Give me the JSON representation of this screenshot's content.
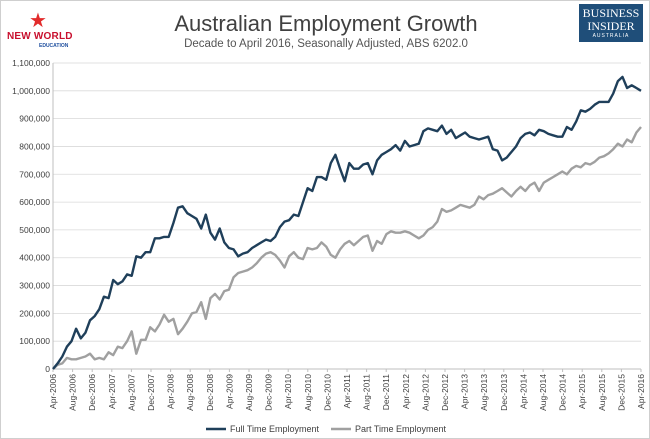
{
  "header": {
    "title": "Australian Employment Growth",
    "subtitle": "Decade to April 2016, Seasonally Adjusted, ABS 6202.0",
    "left_logo": {
      "text": "NEW WORLD",
      "sub": "EDUCATION",
      "icon": "star-person-icon",
      "color": "#c8102e"
    },
    "right_logo": {
      "line1": "BUSINESS",
      "line2": "INSIDER",
      "line3": "AUSTRALIA",
      "bg": "#1f4e79"
    }
  },
  "chart_data": {
    "type": "line",
    "title": "Australian Employment Growth",
    "subtitle": "Decade to April 2016, Seasonally Adjusted, ABS 6202.0",
    "xlabel": "",
    "ylabel": "",
    "ylim": [
      0,
      1100000
    ],
    "yticks": [
      "0",
      "100,000",
      "200,000",
      "300,000",
      "400,000",
      "500,000",
      "600,000",
      "700,000",
      "800,000",
      "900,000",
      "1,000,000",
      "1,100,000"
    ],
    "x_tick_labels": [
      "Apr-2006",
      "Aug-2006",
      "Dec-2006",
      "Apr-2007",
      "Aug-2007",
      "Dec-2007",
      "Apr-2008",
      "Aug-2008",
      "Dec-2008",
      "Apr-2009",
      "Aug-2009",
      "Dec-2009",
      "Apr-2010",
      "Aug-2010",
      "Dec-2010",
      "Apr-2011",
      "Aug-2011",
      "Dec-2011",
      "Apr-2012",
      "Aug-2012",
      "Dec-2012",
      "Apr-2013",
      "Aug-2013",
      "Dec-2013",
      "Apr-2014",
      "Aug-2014",
      "Dec-2014",
      "Apr-2015",
      "Aug-2015",
      "Dec-2015",
      "Apr-2016"
    ],
    "grid": true,
    "legend_position": "bottom",
    "series": [
      {
        "name": "Full Time Employment",
        "color": "#1f3f5a",
        "values": [
          0,
          20000,
          45000,
          80000,
          100000,
          145000,
          110000,
          130000,
          175000,
          190000,
          215000,
          260000,
          255000,
          320000,
          305000,
          315000,
          340000,
          335000,
          405000,
          400000,
          420000,
          420000,
          470000,
          470000,
          475000,
          475000,
          525000,
          580000,
          585000,
          560000,
          550000,
          540000,
          505000,
          555000,
          490000,
          465000,
          505000,
          455000,
          435000,
          430000,
          405000,
          415000,
          420000,
          435000,
          445000,
          455000,
          465000,
          460000,
          475000,
          510000,
          530000,
          535000,
          555000,
          550000,
          600000,
          650000,
          640000,
          690000,
          690000,
          680000,
          740000,
          770000,
          720000,
          675000,
          740000,
          720000,
          720000,
          735000,
          740000,
          700000,
          750000,
          770000,
          780000,
          790000,
          805000,
          785000,
          820000,
          800000,
          805000,
          810000,
          855000,
          865000,
          860000,
          855000,
          875000,
          845000,
          860000,
          830000,
          840000,
          850000,
          835000,
          830000,
          825000,
          830000,
          835000,
          790000,
          785000,
          750000,
          760000,
          780000,
          800000,
          830000,
          845000,
          850000,
          840000,
          860000,
          855000,
          845000,
          840000,
          835000,
          835000,
          870000,
          860000,
          890000,
          930000,
          925000,
          935000,
          950000,
          960000,
          960000,
          960000,
          990000,
          1035000,
          1050000,
          1010000,
          1020000,
          1010000,
          1000000
        ]
      },
      {
        "name": "Part Time Employment",
        "color": "#a0a0a0",
        "values": [
          0,
          15000,
          20000,
          40000,
          35000,
          35000,
          40000,
          45000,
          55000,
          35000,
          40000,
          35000,
          60000,
          50000,
          80000,
          75000,
          100000,
          135000,
          55000,
          105000,
          105000,
          150000,
          135000,
          160000,
          195000,
          170000,
          180000,
          125000,
          145000,
          170000,
          200000,
          205000,
          240000,
          180000,
          255000,
          270000,
          250000,
          280000,
          285000,
          330000,
          345000,
          350000,
          355000,
          365000,
          380000,
          400000,
          415000,
          420000,
          410000,
          390000,
          365000,
          405000,
          420000,
          400000,
          395000,
          435000,
          430000,
          435000,
          455000,
          440000,
          410000,
          400000,
          430000,
          450000,
          460000,
          445000,
          460000,
          475000,
          480000,
          425000,
          460000,
          450000,
          485000,
          495000,
          490000,
          490000,
          495000,
          490000,
          480000,
          470000,
          480000,
          500000,
          510000,
          530000,
          575000,
          565000,
          570000,
          580000,
          590000,
          585000,
          580000,
          590000,
          620000,
          610000,
          625000,
          630000,
          640000,
          650000,
          635000,
          620000,
          640000,
          655000,
          640000,
          660000,
          670000,
          640000,
          670000,
          680000,
          690000,
          700000,
          710000,
          700000,
          720000,
          730000,
          725000,
          740000,
          735000,
          745000,
          760000,
          765000,
          775000,
          790000,
          810000,
          800000,
          825000,
          815000,
          850000,
          870000
        ]
      }
    ]
  }
}
